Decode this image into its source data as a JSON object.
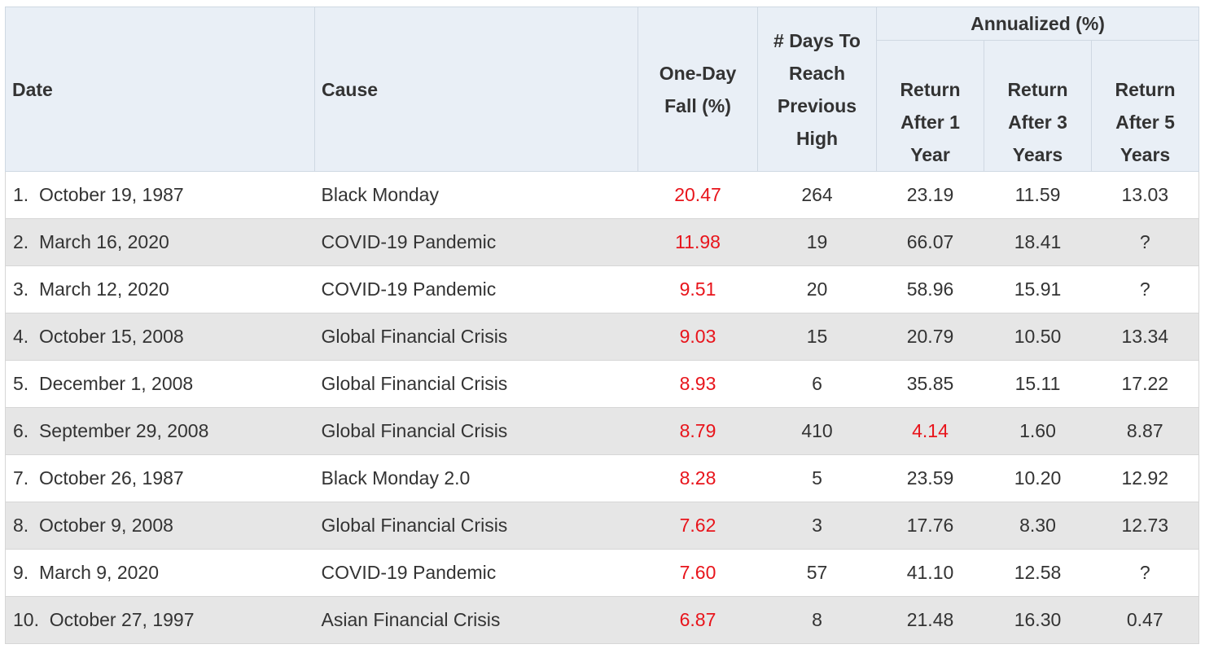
{
  "header": {
    "group_label": "Annualized (%)",
    "date": "Date",
    "cause": "Cause",
    "fall": [
      "One-Day",
      "Fall (%)"
    ],
    "days": [
      "# Days To",
      "Reach",
      "Previous",
      "High"
    ],
    "r1": [
      "Return",
      "After 1",
      "Year"
    ],
    "r3": [
      "Return",
      "After 3",
      "Years"
    ],
    "r5": [
      "Return",
      "After 5",
      "Years"
    ]
  },
  "colors": {
    "header_bg": "#e9eff6",
    "stripe_bg": "#e6e6e6",
    "highlight_red": "#e8141b"
  },
  "rows": [
    {
      "rank": "1.",
      "date": "October 19, 1987",
      "cause": "Black Monday",
      "fall": "20.47",
      "days": "264",
      "r1": "23.19",
      "r3": "11.59",
      "r5": "13.03",
      "r1_red": false
    },
    {
      "rank": "2.",
      "date": "March 16, 2020",
      "cause": "COVID-19 Pandemic",
      "fall": "11.98",
      "days": "19",
      "r1": "66.07",
      "r3": "18.41",
      "r5": "?",
      "r1_red": false
    },
    {
      "rank": "3.",
      "date": "March 12, 2020",
      "cause": "COVID-19 Pandemic",
      "fall": "9.51",
      "days": "20",
      "r1": "58.96",
      "r3": "15.91",
      "r5": "?",
      "r1_red": false
    },
    {
      "rank": "4.",
      "date": "October 15, 2008",
      "cause": "Global Financial Crisis",
      "fall": "9.03",
      "days": "15",
      "r1": "20.79",
      "r3": "10.50",
      "r5": "13.34",
      "r1_red": false
    },
    {
      "rank": "5.",
      "date": "December 1, 2008",
      "cause": "Global Financial Crisis",
      "fall": "8.93",
      "days": "6",
      "r1": "35.85",
      "r3": "15.11",
      "r5": "17.22",
      "r1_red": false
    },
    {
      "rank": "6.",
      "date": "September 29, 2008",
      "cause": "Global Financial Crisis",
      "fall": "8.79",
      "days": "410",
      "r1": "4.14",
      "r3": "1.60",
      "r5": "8.87",
      "r1_red": true
    },
    {
      "rank": "7.",
      "date": "October 26, 1987",
      "cause": "Black Monday 2.0",
      "fall": "8.28",
      "days": "5",
      "r1": "23.59",
      "r3": "10.20",
      "r5": "12.92",
      "r1_red": false
    },
    {
      "rank": "8.",
      "date": "October 9, 2008",
      "cause": "Global Financial Crisis",
      "fall": "7.62",
      "days": "3",
      "r1": "17.76",
      "r3": "8.30",
      "r5": "12.73",
      "r1_red": false
    },
    {
      "rank": "9.",
      "date": "March 9, 2020",
      "cause": "COVID-19 Pandemic",
      "fall": "7.60",
      "days": "57",
      "r1": "41.10",
      "r3": "12.58",
      "r5": "?",
      "r1_red": false
    },
    {
      "rank": "10.",
      "date": "October 27, 1997",
      "cause": "Asian Financial Crisis",
      "fall": "6.87",
      "days": "8",
      "r1": "21.48",
      "r3": "16.30",
      "r5": "0.47",
      "r1_red": false
    }
  ]
}
